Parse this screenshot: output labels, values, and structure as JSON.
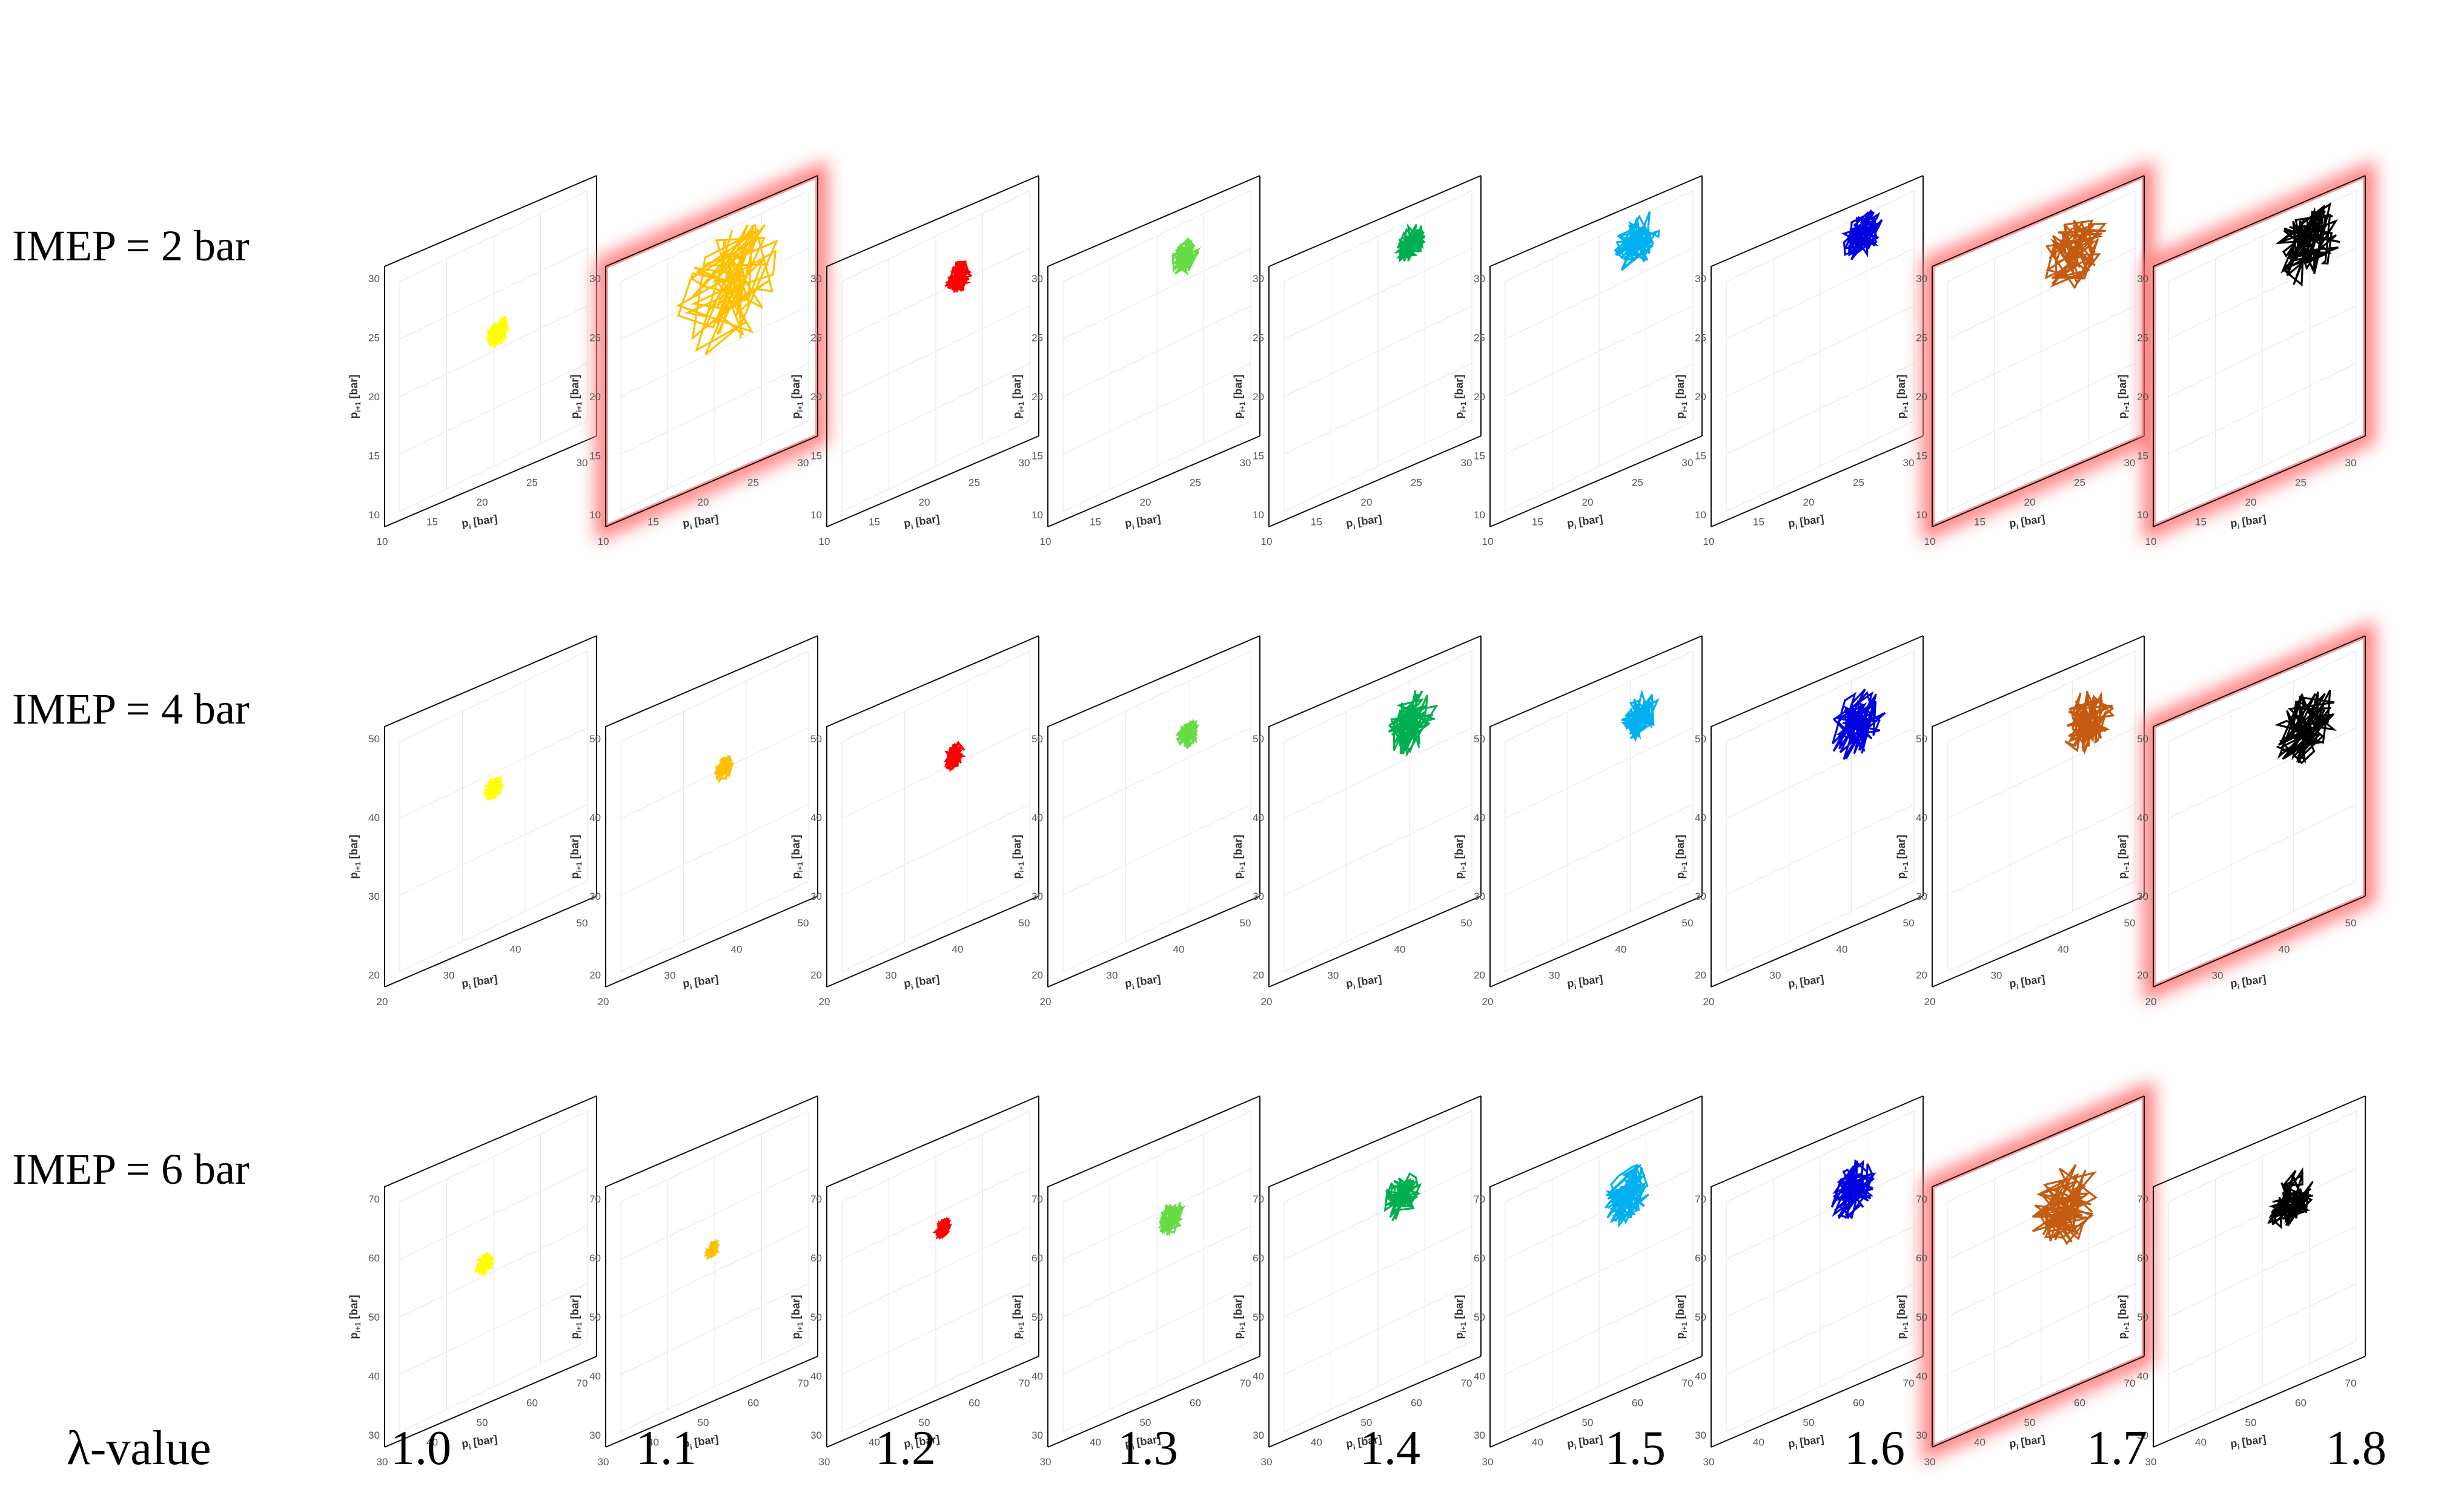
{
  "chart_data": {
    "type": "line",
    "description_of_axes": "return map p_i vs p_i+1",
    "xlabel": "p",
    "xlabel_sub": "i",
    "xlabel_unit": " [bar]",
    "ylabel": "p",
    "ylabel_sub": "i+1",
    "ylabel_unit": " [bar]",
    "row_labels": [
      "IMEP = 2 bar",
      "IMEP = 4 bar",
      "IMEP = 6 bar"
    ],
    "column_axis_label": "λ-value",
    "lambda_values": [
      "1.0",
      "1.1",
      "1.2",
      "1.3",
      "1.4",
      "1.5",
      "1.6",
      "1.7",
      "1.8"
    ],
    "series_colors": [
      "#ffff00",
      "#ffc000",
      "#ff0000",
      "#66dd44",
      "#00b050",
      "#00b0f0",
      "#0000e0",
      "#c55a11",
      "#000000"
    ],
    "highlight_color": "#ff8080",
    "rows": [
      {
        "imep": 2,
        "xlim": [
          10,
          30
        ],
        "ylim": [
          10,
          30
        ],
        "xticks": [
          "10",
          "15",
          "20",
          "25",
          "30"
        ],
        "yticks": [
          "10",
          "15",
          "20",
          "25",
          "30"
        ],
        "highlighted": [
          1,
          7,
          8
        ],
        "clusters": [
          {
            "cx": 20.5,
            "cy": 21.5,
            "spread": 1.3
          },
          {
            "cx": 21.5,
            "cy": 25.0,
            "spread": 5.5
          },
          {
            "cx": 22.5,
            "cy": 25.5,
            "spread": 1.4
          },
          {
            "cx": 23.0,
            "cy": 27.0,
            "spread": 1.5
          },
          {
            "cx": 23.5,
            "cy": 28.0,
            "spread": 1.6
          },
          {
            "cx": 24.0,
            "cy": 28.0,
            "spread": 2.5
          },
          {
            "cx": 24.5,
            "cy": 28.5,
            "spread": 2.2
          },
          {
            "cx": 23.5,
            "cy": 27.5,
            "spread": 3.5
          },
          {
            "cx": 25.0,
            "cy": 27.5,
            "spread": 3.6
          }
        ]
      },
      {
        "imep": 4,
        "xlim": [
          20,
          50
        ],
        "ylim": [
          20,
          50
        ],
        "xticks": [
          "20",
          "30",
          "40",
          "50"
        ],
        "yticks": [
          "20",
          "30",
          "40",
          "50"
        ],
        "highlighted": [
          8
        ],
        "clusters": [
          {
            "cx": 35.0,
            "cy": 38.0,
            "spread": 1.5
          },
          {
            "cx": 36.5,
            "cy": 40.0,
            "spread": 1.6
          },
          {
            "cx": 38.0,
            "cy": 41.0,
            "spread": 1.7
          },
          {
            "cx": 40.0,
            "cy": 43.0,
            "spread": 1.8
          },
          {
            "cx": 40.5,
            "cy": 44.5,
            "spread": 4.0
          },
          {
            "cx": 41.5,
            "cy": 45.0,
            "spread": 3.0
          },
          {
            "cx": 41.0,
            "cy": 44.0,
            "spread": 4.5
          },
          {
            "cx": 42.5,
            "cy": 44.0,
            "spread": 4.2
          },
          {
            "cx": 42.0,
            "cy": 43.5,
            "spread": 5.0
          }
        ]
      },
      {
        "imep": 6,
        "xlim": [
          30,
          70
        ],
        "ylim": [
          30,
          70
        ],
        "xticks": [
          "30",
          "40",
          "50",
          "60",
          "70"
        ],
        "yticks": [
          "30",
          "40",
          "50",
          "60",
          "70"
        ],
        "highlighted": [
          7
        ],
        "clusters": [
          {
            "cx": 48.0,
            "cy": 52.0,
            "spread": 2.0
          },
          {
            "cx": 49.5,
            "cy": 54.0,
            "spread": 1.5
          },
          {
            "cx": 51.5,
            "cy": 57.0,
            "spread": 1.8
          },
          {
            "cx": 53.0,
            "cy": 58.0,
            "spread": 2.8
          },
          {
            "cx": 55.0,
            "cy": 61.0,
            "spread": 4.0
          },
          {
            "cx": 56.0,
            "cy": 61.0,
            "spread": 5.0
          },
          {
            "cx": 57.0,
            "cy": 61.5,
            "spread": 5.0
          },
          {
            "cx": 55.0,
            "cy": 59.0,
            "spread": 7.5
          },
          {
            "cx": 56.0,
            "cy": 60.0,
            "spread": 5.0
          }
        ]
      }
    ]
  }
}
